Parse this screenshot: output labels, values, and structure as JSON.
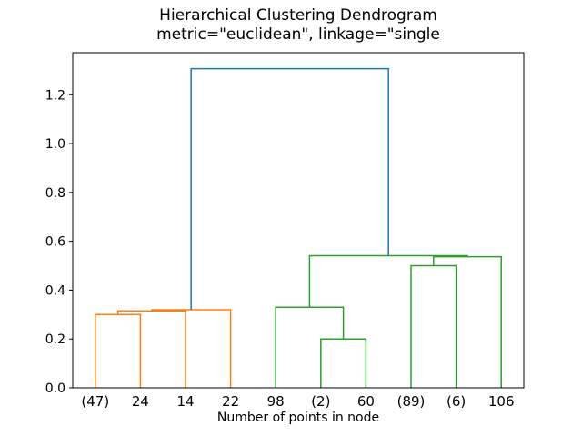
{
  "chart_data": {
    "type": "dendrogram",
    "title": "Hierarchical Clustering Dendrogram",
    "subtitle": "metric=\"euclidean\", linkage=\"single",
    "xlabel": "Number of points in node",
    "ylabel": "",
    "grid": false,
    "legend": null,
    "xlim": [
      0,
      100
    ],
    "ylim": [
      0,
      1.372
    ],
    "ytick_values": [
      0.0,
      0.2,
      0.4,
      0.6,
      0.8,
      1.0,
      1.2
    ],
    "ytick_labels": [
      "0.0",
      "0.2",
      "0.4",
      "0.6",
      "0.8",
      "1.0",
      "1.2"
    ],
    "leaves": [
      {
        "label": "(47)",
        "x": 5
      },
      {
        "label": "24",
        "x": 15
      },
      {
        "label": "14",
        "x": 25
      },
      {
        "label": "22",
        "x": 35
      },
      {
        "label": "98",
        "x": 45
      },
      {
        "label": "(2)",
        "x": 55
      },
      {
        "label": "60",
        "x": 65
      },
      {
        "label": "(89)",
        "x": 75
      },
      {
        "label": "(6)",
        "x": 85
      },
      {
        "label": "106",
        "x": 95
      }
    ],
    "links": [
      {
        "x": [
          5,
          5,
          15,
          15
        ],
        "y": [
          0,
          0.3,
          0.3,
          0
        ],
        "color": "#ff7f0e"
      },
      {
        "x": [
          10,
          10,
          25,
          25
        ],
        "y": [
          0.3,
          0.315,
          0.315,
          0
        ],
        "color": "#ff7f0e"
      },
      {
        "x": [
          17.5,
          17.5,
          35,
          35
        ],
        "y": [
          0.315,
          0.32,
          0.32,
          0
        ],
        "color": "#ff7f0e"
      },
      {
        "x": [
          55,
          55,
          65,
          65
        ],
        "y": [
          0,
          0.2,
          0.2,
          0
        ],
        "color": "#2ca02c"
      },
      {
        "x": [
          45,
          45,
          60,
          60
        ],
        "y": [
          0,
          0.33,
          0.33,
          0.2
        ],
        "color": "#2ca02c"
      },
      {
        "x": [
          75,
          75,
          85,
          85
        ],
        "y": [
          0,
          0.5,
          0.5,
          0
        ],
        "color": "#2ca02c"
      },
      {
        "x": [
          80,
          80,
          95,
          95
        ],
        "y": [
          0.5,
          0.537,
          0.537,
          0
        ],
        "color": "#2ca02c"
      },
      {
        "x": [
          52.5,
          52.5,
          87.5,
          87.5
        ],
        "y": [
          0.33,
          0.541,
          0.541,
          0.537
        ],
        "color": "#2ca02c"
      },
      {
        "x": [
          26.25,
          26.25,
          70,
          70
        ],
        "y": [
          0.32,
          1.3065,
          1.3065,
          0.541
        ],
        "color": "#1f77b4"
      }
    ],
    "colors": {
      "cluster1": "#ff7f0e",
      "cluster2": "#2ca02c",
      "above_threshold": "#1f77b4",
      "axes": "#000000",
      "background": "#ffffff"
    }
  }
}
